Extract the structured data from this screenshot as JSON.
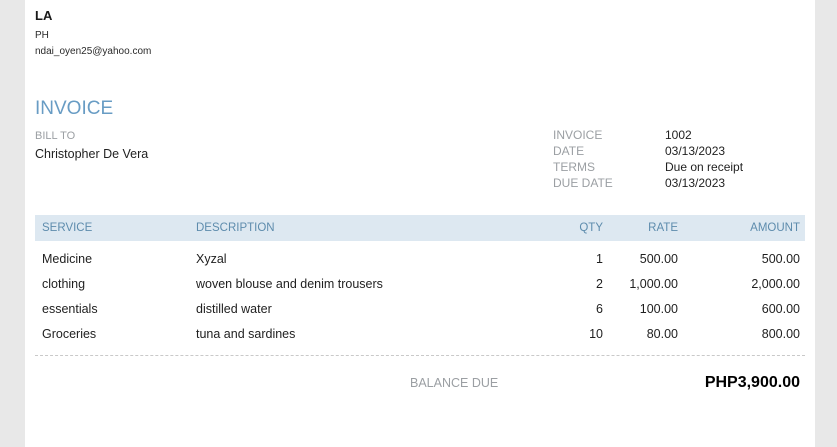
{
  "company": {
    "name": "LA",
    "address_line": "PH",
    "email": "ndai_oyen25@yahoo.com"
  },
  "invoice": {
    "title": "INVOICE",
    "bill_to_label": "BILL TO",
    "bill_to_name": "Christopher De Vera",
    "meta": [
      {
        "label": "INVOICE",
        "value": "1002"
      },
      {
        "label": "DATE",
        "value": "03/13/2023"
      },
      {
        "label": "TERMS",
        "value": "Due on receipt"
      },
      {
        "label": "DUE DATE",
        "value": "03/13/2023"
      }
    ]
  },
  "table": {
    "columns": [
      "SERVICE",
      "DESCRIPTION",
      "QTY",
      "RATE",
      "AMOUNT"
    ],
    "rows": [
      {
        "service": "Medicine",
        "description": "Xyzal",
        "qty": "1",
        "rate": "500.00",
        "amount": "500.00"
      },
      {
        "service": "clothing",
        "description": "woven blouse and denim trousers",
        "qty": "2",
        "rate": "1,000.00",
        "amount": "2,000.00"
      },
      {
        "service": "essentials",
        "description": "distilled water",
        "qty": "6",
        "rate": "100.00",
        "amount": "600.00"
      },
      {
        "service": "Groceries",
        "description": "tuna and sardines",
        "qty": "10",
        "rate": "80.00",
        "amount": "800.00"
      }
    ]
  },
  "summary": {
    "balance_due_label": "BALANCE DUE",
    "balance_due_value": "PHP3,900.00"
  },
  "colors": {
    "accent_blue": "#689cc4",
    "table_header_bg": "#dde8f1",
    "table_header_text": "#5e8cad",
    "muted_gray": "#9b9fa3",
    "frame_gray": "#e8e8e8"
  }
}
